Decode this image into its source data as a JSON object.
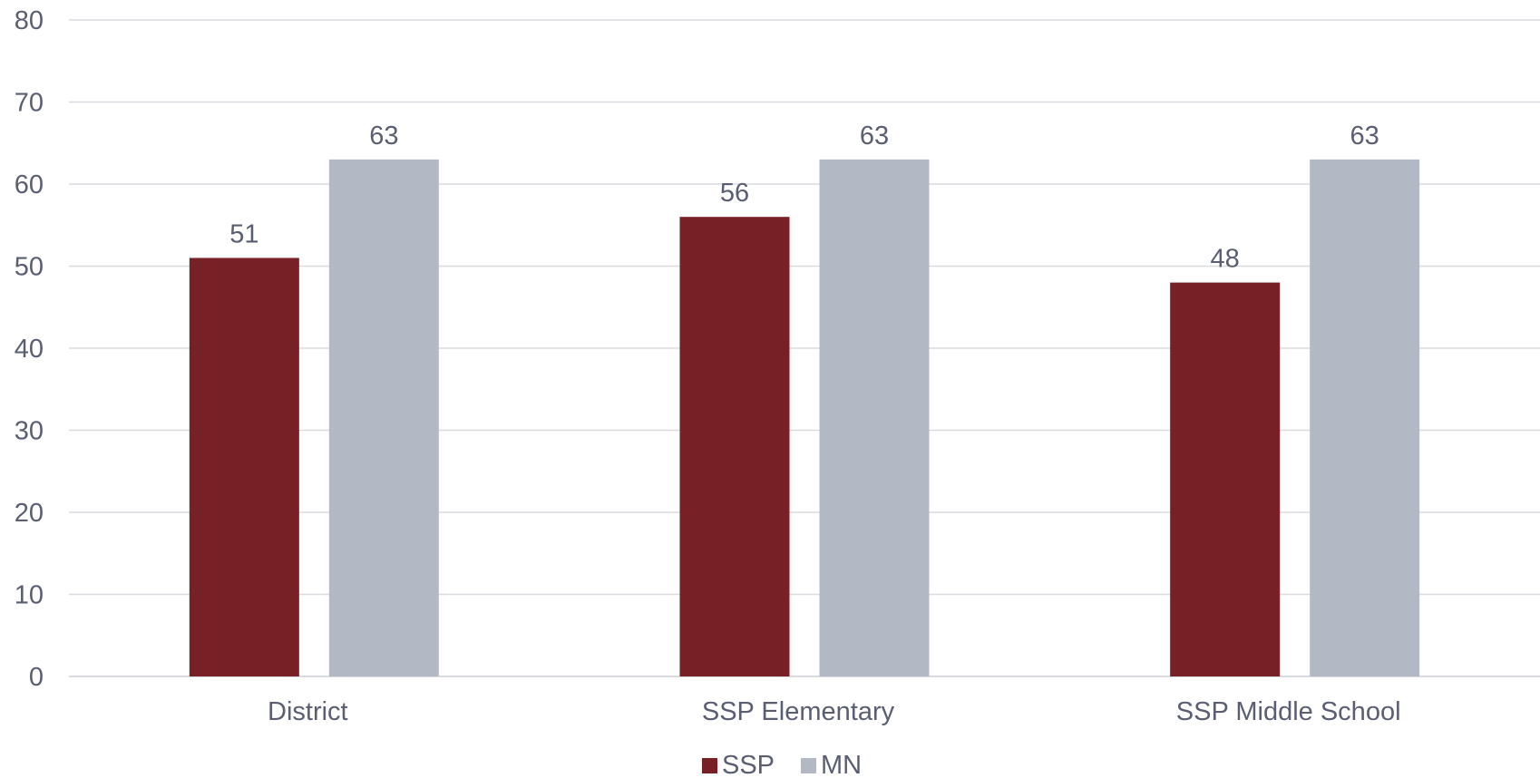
{
  "chart_data": {
    "type": "bar",
    "categories": [
      "District",
      "SSP Elementary",
      "SSP Middle School"
    ],
    "series": [
      {
        "name": "SSP",
        "values": [
          51,
          56,
          48
        ],
        "color": "#772025"
      },
      {
        "name": "MN",
        "values": [
          63,
          63,
          63
        ],
        "color": "#b3b9c4"
      }
    ],
    "ylim": [
      0,
      80
    ],
    "yticks": [
      0,
      10,
      20,
      30,
      40,
      50,
      60,
      70,
      80
    ],
    "grid": true,
    "legend": "bottom",
    "data_labels": true,
    "title": "",
    "xlabel": "",
    "ylabel": ""
  },
  "colors": {
    "grid": "#d9dbe0",
    "text": "#5a5e72"
  }
}
